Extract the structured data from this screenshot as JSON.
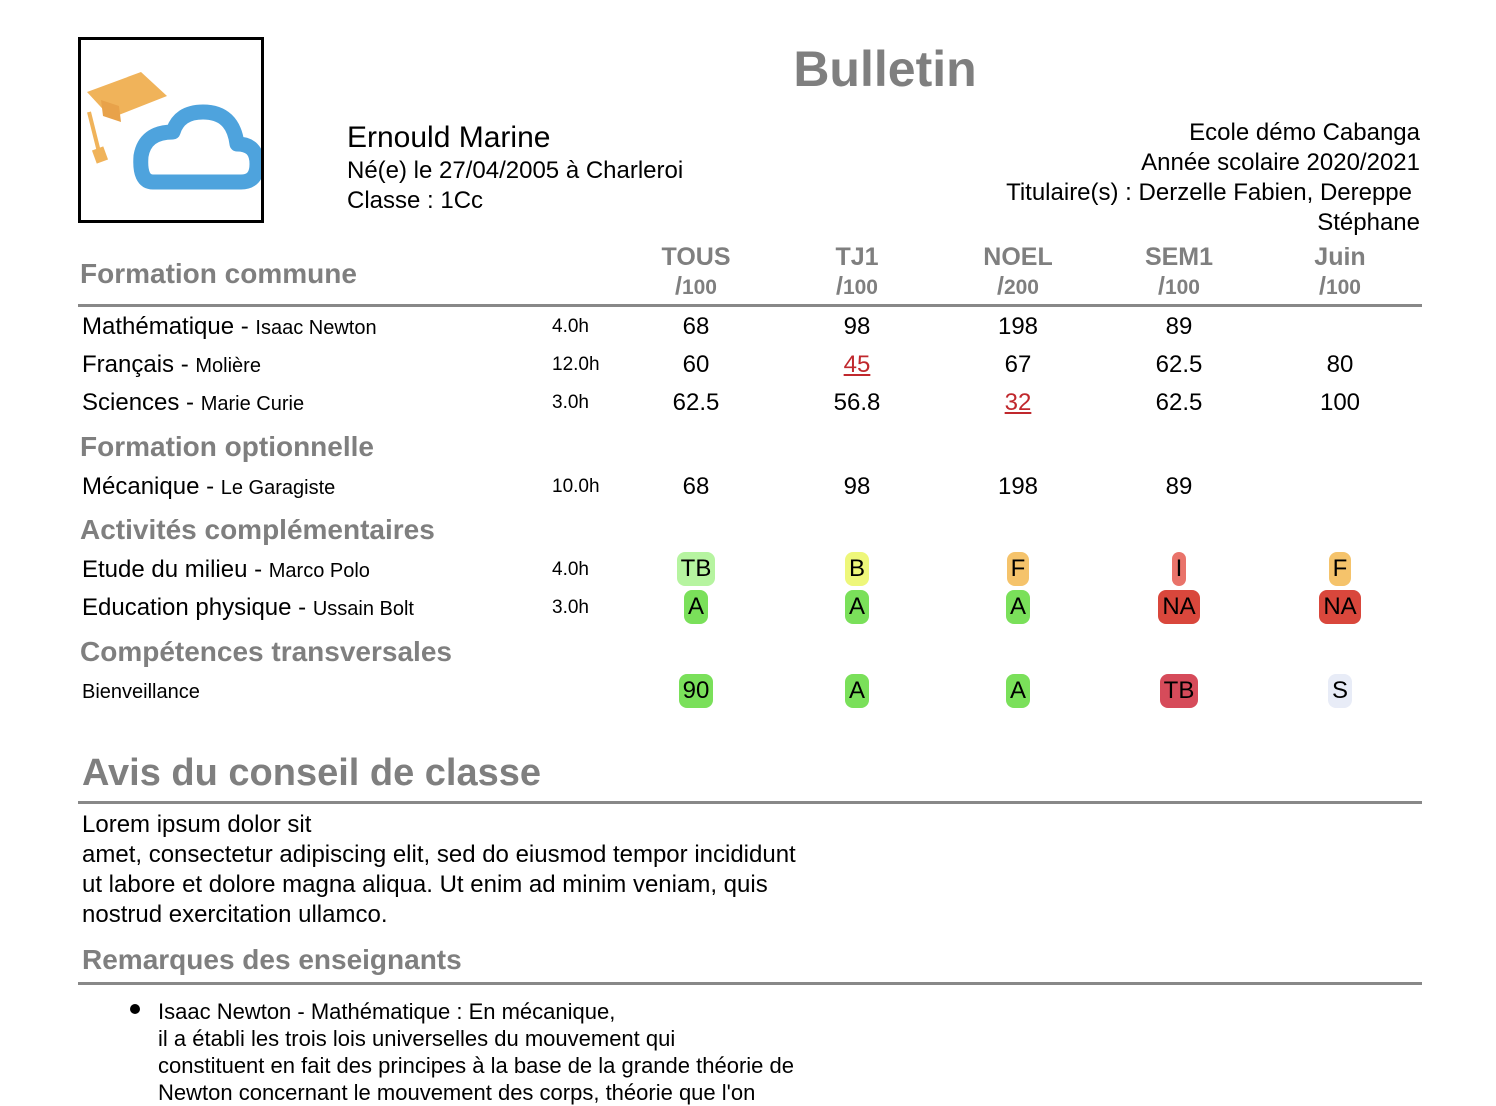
{
  "title": "Bulletin",
  "student": {
    "name": "Ernould Marine",
    "birth": "Né(e) le 27/04/2005 à Charleroi",
    "class": "Classe : 1Cc"
  },
  "school": {
    "name": "Ecole démo Cabanga",
    "year": "Année scolaire 2020/2021",
    "titulaires_1": "Titulaire(s) : Derzelle Fabien, Dereppe",
    "titulaires_2": "Stéphane"
  },
  "periods": [
    {
      "name": "TOUS",
      "max": "100"
    },
    {
      "name": "TJ1",
      "max": "100"
    },
    {
      "name": "NOEL",
      "max": "200"
    },
    {
      "name": "SEM1",
      "max": "100"
    },
    {
      "name": "Juin",
      "max": "100"
    }
  ],
  "sections": {
    "commune": "Formation commune",
    "optionnelle": "Formation optionnelle",
    "activites": "Activités complémentaires",
    "competences": "Compétences transversales"
  },
  "rows": [
    {
      "subject": "Mathématique",
      "teacher": "Isaac Newton",
      "hours": "4.0h",
      "values": [
        {
          "v": "68"
        },
        {
          "v": "98"
        },
        {
          "v": "198"
        },
        {
          "v": "89"
        },
        {
          "v": ""
        }
      ]
    },
    {
      "subject": "Français",
      "teacher": "Molière",
      "hours": "12.0h",
      "values": [
        {
          "v": "60"
        },
        {
          "v": "45",
          "red": true
        },
        {
          "v": "67"
        },
        {
          "v": "62.5"
        },
        {
          "v": "80"
        }
      ]
    },
    {
      "subject": "Sciences",
      "teacher": "Marie Curie",
      "hours": "3.0h",
      "values": [
        {
          "v": "62.5"
        },
        {
          "v": "56.8"
        },
        {
          "v": "32",
          "red": true
        },
        {
          "v": "62.5"
        },
        {
          "v": "100"
        }
      ]
    },
    {
      "subject": "Mécanique",
      "teacher": "Le Garagiste",
      "hours": "10.0h",
      "values": [
        {
          "v": "68"
        },
        {
          "v": "98"
        },
        {
          "v": "198"
        },
        {
          "v": "89"
        },
        {
          "v": ""
        }
      ]
    },
    {
      "subject": "Etude du milieu",
      "teacher": "Marco Polo",
      "hours": "4.0h",
      "values": [
        {
          "v": "TB",
          "bg": "#b6f4a0"
        },
        {
          "v": "B",
          "bg": "#eef77a"
        },
        {
          "v": "F",
          "bg": "#f5c36b"
        },
        {
          "v": "I",
          "bg": "#e9736a"
        },
        {
          "v": "F",
          "bg": "#f5c36b"
        }
      ]
    },
    {
      "subject": "Education physique",
      "teacher": "Ussain Bolt",
      "hours": "3.0h",
      "values": [
        {
          "v": "A",
          "bg": "#7ae05a"
        },
        {
          "v": "A",
          "bg": "#7ae05a"
        },
        {
          "v": "A",
          "bg": "#7ae05a"
        },
        {
          "v": "NA",
          "bg": "#d9473c"
        },
        {
          "v": "NA",
          "bg": "#d9473c"
        }
      ]
    },
    {
      "subject": "Bienveillance",
      "teacher": "",
      "hours": "",
      "values": [
        {
          "v": "90",
          "bg": "#7ae05a"
        },
        {
          "v": "A",
          "bg": "#7ae05a"
        },
        {
          "v": "A",
          "bg": "#7ae05a"
        },
        {
          "v": "TB",
          "bg": "#d64b5a"
        },
        {
          "v": "S",
          "bg": "#e8ecf7"
        }
      ]
    }
  ],
  "conseil": {
    "heading": "Avis du conseil de classe",
    "line1": "Lorem ipsum dolor sit",
    "line2": "amet, consectetur adipiscing elit, sed do eiusmod tempor incididunt",
    "line3": "ut labore et dolore magna aliqua. Ut enim ad minim veniam, quis",
    "line4": "nostrud exercitation ullamco."
  },
  "remarques": {
    "heading": "Remarques des enseignants",
    "item1": "Isaac Newton - Mathématique : En mécanique,\nil a établi les trois lois universelles du mouvement qui\nconstituent en fait des principes à la base de la grande théorie de\nNewton concernant le mouvement des corps, théorie que l'on"
  }
}
